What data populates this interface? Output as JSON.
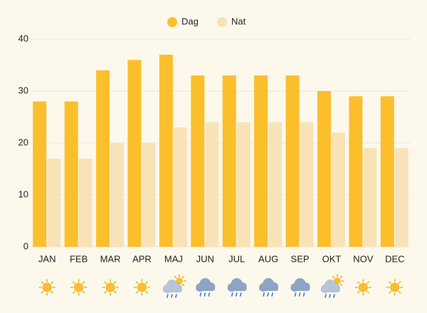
{
  "chart_data": {
    "type": "bar",
    "categories": [
      "JAN",
      "FEB",
      "MAR",
      "APR",
      "MAJ",
      "JUN",
      "JUL",
      "AUG",
      "SEP",
      "OKT",
      "NOV",
      "DEC"
    ],
    "series": [
      {
        "name": "Dag",
        "color": "#fbbf2c",
        "values": [
          28,
          28,
          34,
          36,
          37,
          33,
          33,
          33,
          33,
          30,
          29,
          29
        ]
      },
      {
        "name": "Nat",
        "color": "#f8e3b9",
        "values": [
          17,
          17,
          20,
          20,
          23,
          24,
          24,
          24,
          24,
          22,
          19,
          19
        ]
      }
    ],
    "icons": [
      "sun",
      "sun",
      "sun",
      "sun",
      "rain-sun",
      "rain",
      "rain",
      "rain",
      "rain",
      "rain-sun",
      "sun",
      "sun"
    ],
    "ylim": [
      0,
      40
    ],
    "yticks": [
      0,
      10,
      20,
      30,
      40
    ],
    "grid": true,
    "legend": "top"
  }
}
